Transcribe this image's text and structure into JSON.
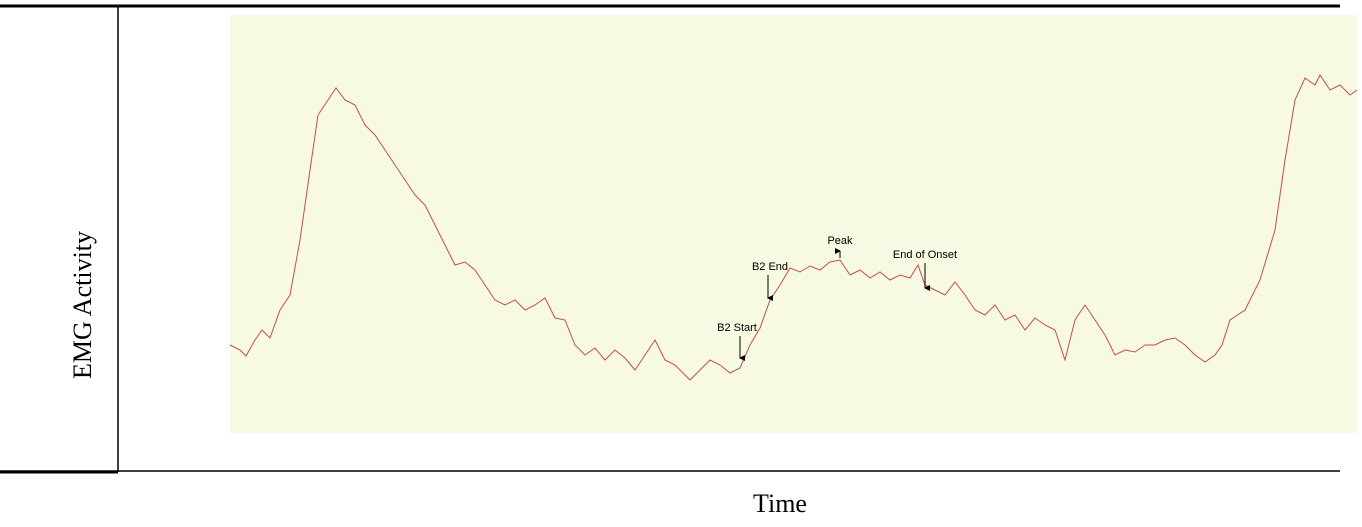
{
  "figure": {
    "y_label": "EMG Activity",
    "x_label": "Time",
    "annotations": [
      "B2 Start",
      "B2 End",
      "Peak",
      "End of Onset"
    ]
  }
}
